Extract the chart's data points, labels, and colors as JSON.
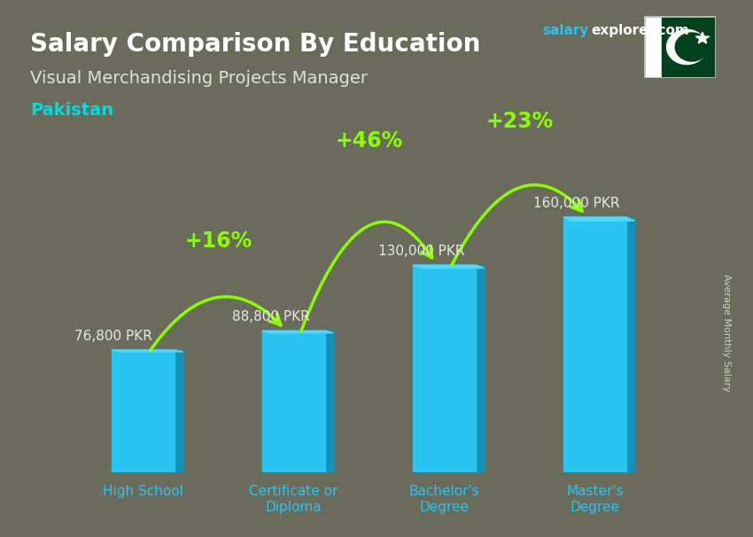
{
  "title": "Salary Comparison By Education",
  "subtitle": "Visual Merchandising Projects Manager",
  "country": "Pakistan",
  "ylabel": "Average Monthly Salary",
  "categories": [
    "High School",
    "Certificate or\nDiploma",
    "Bachelor's\nDegree",
    "Master's\nDegree"
  ],
  "values": [
    76800,
    88800,
    130000,
    160000
  ],
  "value_labels": [
    "76,800 PKR",
    "88,800 PKR",
    "130,000 PKR",
    "160,000 PKR"
  ],
  "pct_changes": [
    "+16%",
    "+46%",
    "+23%"
  ],
  "bar_color_face": "#29C4F0",
  "bar_color_dark": "#1590B8",
  "bar_color_top": "#50D8FF",
  "background_color": "#6b6b5b",
  "title_color": "#ffffff",
  "subtitle_color": "#e0e0e0",
  "country_color": "#00DDDD",
  "watermark_salary_color": "#29C4F0",
  "watermark_explorer_color": "#ffffff",
  "value_label_color": "#e8e8e8",
  "pct_color": "#88FF00",
  "arrow_color": "#88FF00",
  "tick_label_color": "#29C4F0",
  "ylabel_color": "#cccccc",
  "ylim": [
    0,
    185000
  ],
  "figsize": [
    8.5,
    6.06
  ],
  "dpi": 100
}
